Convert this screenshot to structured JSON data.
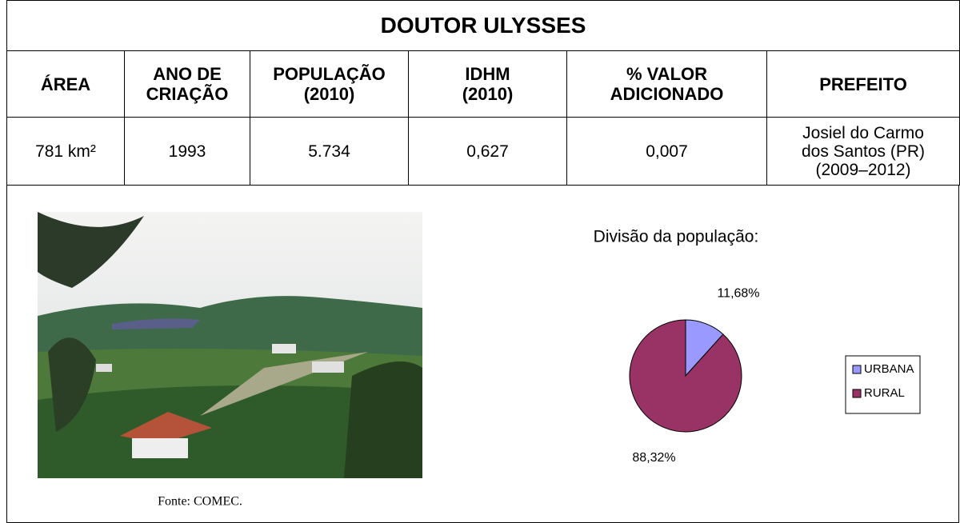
{
  "table": {
    "title": "DOUTOR ULYSSES",
    "header": [
      "ÁREA",
      "ANO DE\nCRIAÇÃO",
      "POPULAÇÃO\n(2010)",
      "IDHM\n(2010)",
      "% VALOR\nADICIONADO",
      "PREFEITO"
    ],
    "rows": [
      [
        "781 km²",
        "1993",
        "5.734",
        "0,627",
        "0,007",
        "Josiel do Carmo\ndos Santos (PR)\n(2009–2012)"
      ]
    ]
  },
  "photo": {
    "caption": "Fonte: COMEC."
  },
  "chart_data": {
    "type": "pie",
    "title": "Divisão da população:",
    "categories": [
      "URBANA",
      "RURAL"
    ],
    "values": [
      11.68,
      88.32
    ],
    "value_labels": [
      "11,68%",
      "88,32%"
    ],
    "colors": [
      "#9999ff",
      "#993366"
    ],
    "legend": "right"
  }
}
